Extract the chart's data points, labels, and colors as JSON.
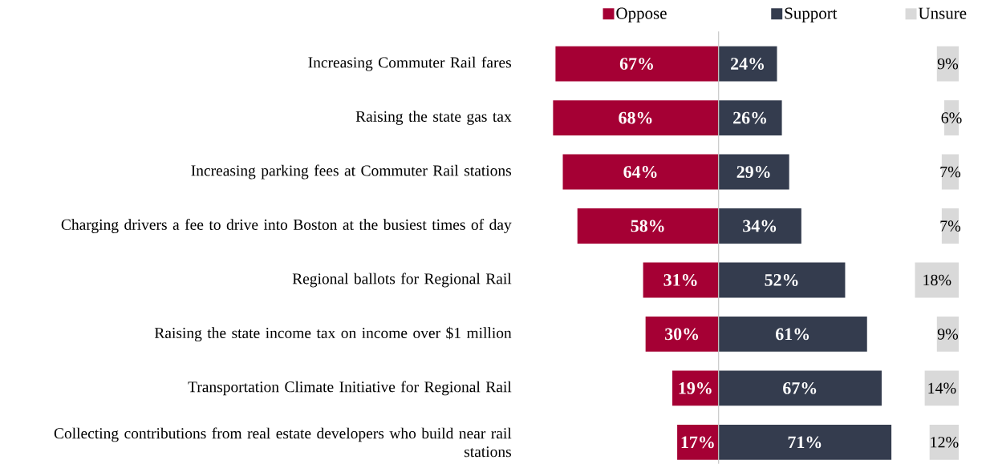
{
  "chart_data": [
    {
      "type": "bar",
      "orientation": "horizontal",
      "tick_labels": "y",
      "legend": "top",
      "categories": [
        "Increasing Commuter Rail fares",
        "Raising the state gas tax",
        "Increasing parking fees at Commuter Rail stations",
        "Charging drivers a fee to drive into Boston at the busiest times of day",
        "Regional ballots for Regional Rail",
        "Raising the state income tax on income over $1 million",
        "Transportation Climate Initiative for Regional Rail",
        "Collecting contributions from real estate developers who build near rail stations"
      ],
      "xlim": [
        68,
        0
      ],
      "series": [
        {
          "name": "Oppose",
          "color": "#a50034",
          "values": [
            67,
            68,
            64,
            58,
            31,
            30,
            19,
            17
          ],
          "value_labels": [
            "67%",
            "68%",
            "64%",
            "58%",
            "31%",
            "30%",
            "19%",
            "17%"
          ]
        }
      ]
    },
    {
      "type": "bar",
      "orientation": "horizontal",
      "tick_labels": false,
      "legend": "top",
      "categories": [
        null,
        null,
        null,
        null,
        null,
        null,
        null,
        null
      ],
      "xlim": [
        0,
        71
      ],
      "series": [
        {
          "name": "Support",
          "color": "#343c4e",
          "values": [
            24,
            26,
            29,
            34,
            52,
            61,
            67,
            71
          ],
          "value_labels": [
            "24%",
            "26%",
            "29%",
            "34%",
            "52%",
            "61%",
            "67%",
            "71%"
          ]
        }
      ]
    },
    {
      "type": "bar",
      "orientation": "horizontal",
      "tick_labels": false,
      "legend": "top",
      "categories": [
        null,
        null,
        null,
        null,
        null,
        null,
        null,
        null
      ],
      "xlim": [
        18,
        0
      ],
      "series": [
        {
          "name": "Unsure",
          "color": "#d9d9d9",
          "values": [
            9,
            6,
            7,
            7,
            18,
            9,
            14,
            12
          ],
          "value_labels": [
            "9%",
            "6%",
            "7%",
            "7%",
            "18%",
            "9%",
            "14%",
            "12%"
          ]
        }
      ]
    }
  ]
}
